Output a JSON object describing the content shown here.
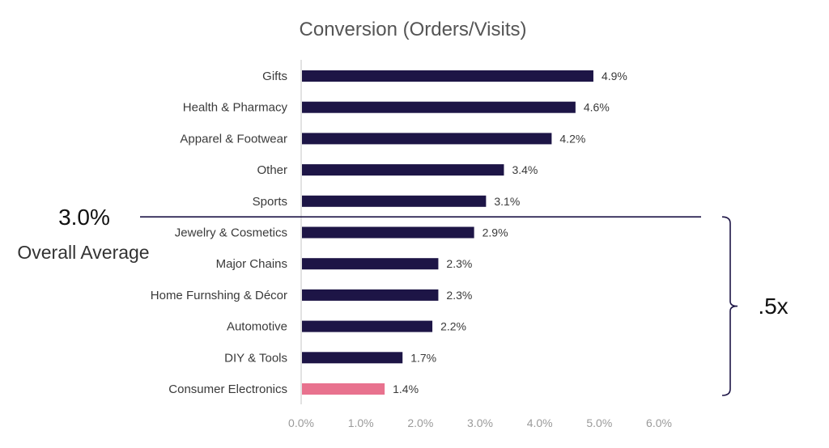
{
  "chart_data": {
    "type": "bar",
    "orientation": "horizontal",
    "title": "Conversion (Orders/Visits)",
    "categories": [
      "Gifts",
      "Health & Pharmacy",
      "Apparel & Footwear",
      "Other",
      "Sports",
      "Jewelry & Cosmetics",
      "Major Chains",
      "Home Furnshing & Décor",
      "Automotive",
      "DIY & Tools",
      "Consumer Electronics"
    ],
    "values": [
      4.9,
      4.6,
      4.2,
      3.4,
      3.1,
      2.9,
      2.3,
      2.3,
      2.2,
      1.7,
      1.4
    ],
    "value_labels": [
      "4.9%",
      "4.6%",
      "4.2%",
      "3.4%",
      "3.1%",
      "2.9%",
      "2.3%",
      "2.3%",
      "2.2%",
      "1.7%",
      "1.4%"
    ],
    "highlight_category": "Consumer Electronics",
    "xlim": [
      0,
      6
    ],
    "xticks": [
      0,
      1,
      2,
      3,
      4,
      5,
      6
    ],
    "xtick_labels": [
      "0.0%",
      "1.0%",
      "2.0%",
      "3.0%",
      "4.0%",
      "5.0%",
      "6.0%"
    ],
    "grid": false,
    "legend": "none",
    "colors": {
      "bar": "#1d1546",
      "highlight": "#e8728e",
      "axis": "#d9d9d9",
      "reference_line": "#1d1546"
    },
    "reference_line": {
      "value_text": "3.0%",
      "caption": "Overall Average",
      "between": [
        "Sports",
        "Jewelry & Cosmetics"
      ]
    },
    "bracket": {
      "label": ".5x",
      "spans": [
        "Jewelry & Cosmetics",
        "Consumer Electronics"
      ]
    }
  }
}
